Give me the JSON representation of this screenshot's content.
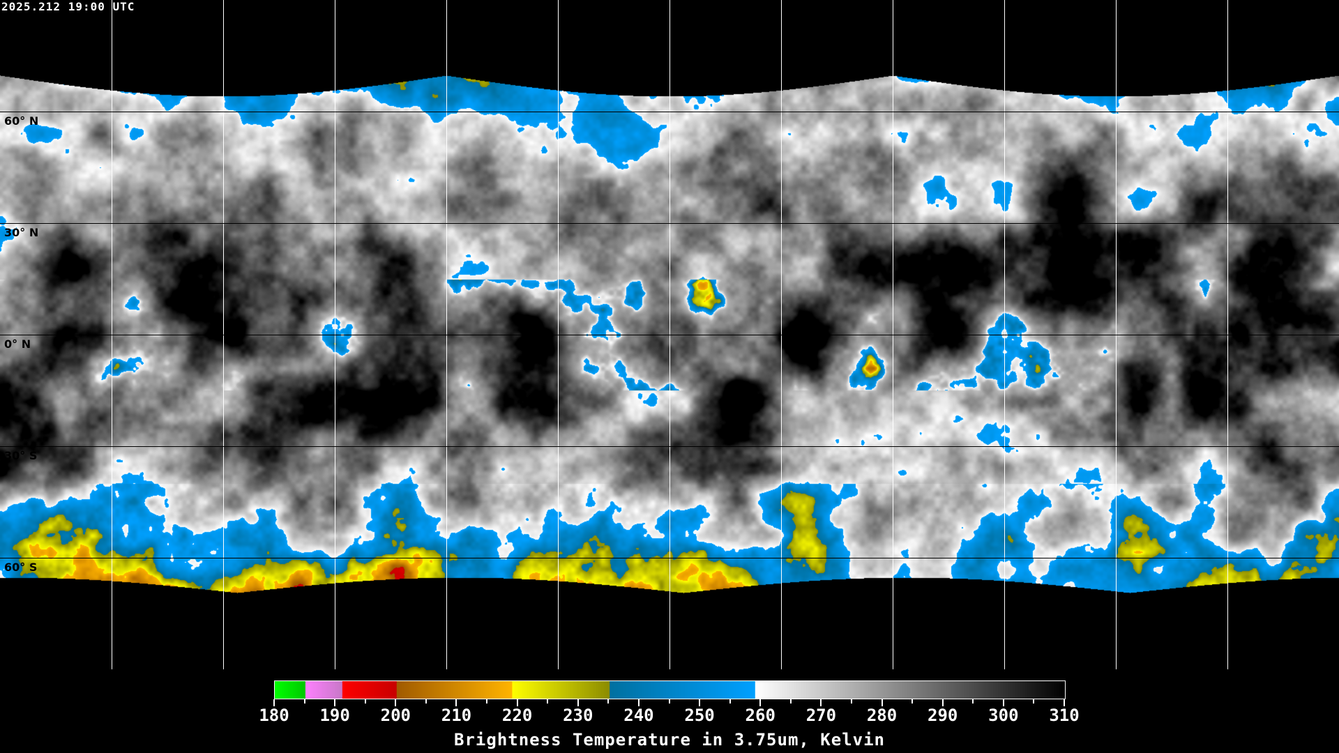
{
  "timestamp": "2025.212 19:00 UTC",
  "map": {
    "projection": "equirectangular",
    "lon_range": [
      -180,
      180
    ],
    "lat_range": [
      -90,
      90
    ],
    "gridline_spacing_deg": 30,
    "lat_labels": [
      "60° N",
      "30° N",
      "0° N",
      "30° S",
      "60° S"
    ]
  },
  "colorbar": {
    "title": "Brightness Temperature in 3.75um, Kelvin",
    "range": [
      180,
      310
    ],
    "tick_labels": [
      "180",
      "190",
      "200",
      "210",
      "220",
      "230",
      "240",
      "250",
      "260",
      "270",
      "280",
      "290",
      "300",
      "310"
    ],
    "segments": [
      {
        "from": 180,
        "to": 185,
        "colors": [
          "#00ff00",
          "#00c800"
        ]
      },
      {
        "from": 185,
        "to": 191,
        "colors": [
          "#ff80ff",
          "#c878c8"
        ]
      },
      {
        "from": 191,
        "to": 200,
        "colors": [
          "#ff0000",
          "#c80000"
        ]
      },
      {
        "from": 200,
        "to": 219,
        "colors": [
          "#a05a00",
          "#ffb400"
        ]
      },
      {
        "from": 219,
        "to": 235,
        "colors": [
          "#ffff00",
          "#8c8c00"
        ]
      },
      {
        "from": 235,
        "to": 259,
        "colors": [
          "#0070a0",
          "#00a0ff"
        ]
      },
      {
        "from": 259,
        "to": 310,
        "colors": [
          "#ffffff",
          "#000000"
        ]
      }
    ]
  }
}
